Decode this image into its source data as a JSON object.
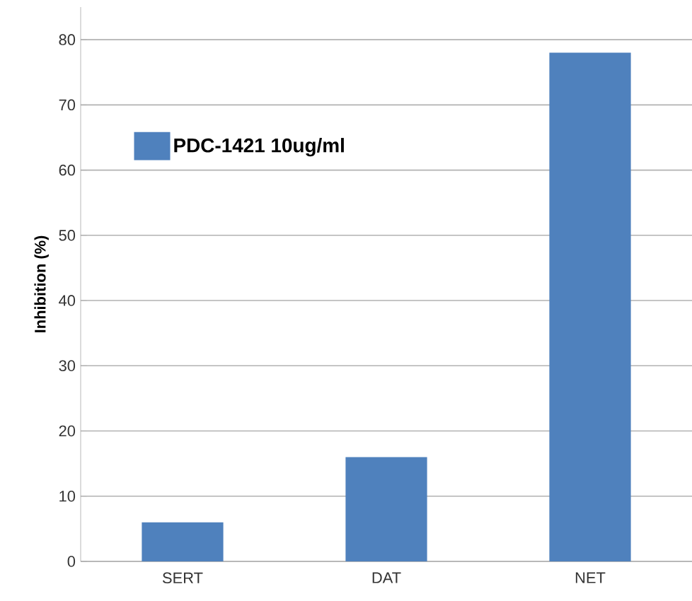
{
  "chart_data": {
    "type": "bar",
    "ylabel": "Inhibition (%)",
    "categories": [
      "SERT",
      "DAT",
      "NET"
    ],
    "series": [
      {
        "name": "PDC-1421 10ug/ml",
        "color": "#4f81bd",
        "values": [
          6,
          16,
          78
        ]
      }
    ],
    "ylim": [
      0,
      85
    ],
    "yticks": [
      0,
      10,
      20,
      30,
      40,
      50,
      60,
      70,
      80
    ],
    "grid": "y",
    "legend": "top left"
  }
}
